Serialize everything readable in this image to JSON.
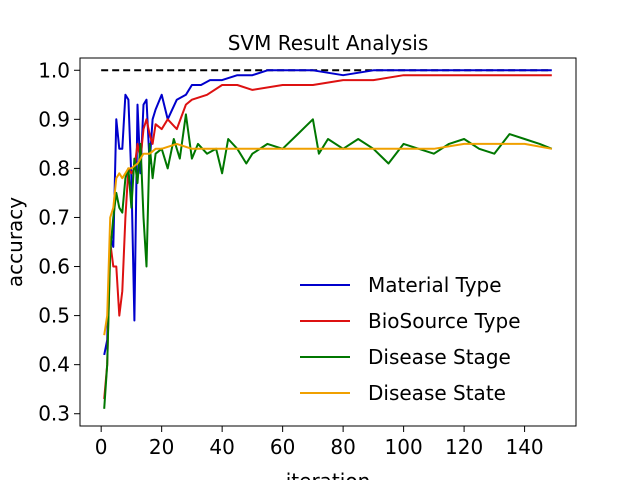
{
  "chart_data": {
    "type": "line",
    "title": "SVM Result Analysis",
    "xlabel": "iteration",
    "ylabel": "accuracy",
    "xlim": [
      -7,
      157
    ],
    "ylim": [
      0.275,
      1.025
    ],
    "xticks": [
      0,
      20,
      40,
      60,
      80,
      100,
      120,
      140
    ],
    "yticks": [
      0.3,
      0.4,
      0.5,
      0.6,
      0.7,
      0.8,
      0.9,
      1.0
    ],
    "xtick_labels": [
      "0",
      "20",
      "40",
      "60",
      "80",
      "100",
      "120",
      "140"
    ],
    "ytick_labels": [
      "0.3",
      "0.4",
      "0.5",
      "0.6",
      "0.7",
      "0.8",
      "0.9",
      "1.0"
    ],
    "grid": false,
    "legend_position": "lower-right",
    "reference_line": {
      "y": 1.0,
      "x_range": [
        0,
        149
      ],
      "style": "dashed",
      "color": "#000000"
    },
    "series": [
      {
        "name": "Material Type",
        "color": "#0000cc",
        "x": [
          1,
          2,
          3,
          4,
          5,
          6,
          7,
          8,
          9,
          10,
          11,
          12,
          13,
          14,
          15,
          16,
          17,
          18,
          20,
          22,
          25,
          28,
          30,
          33,
          36,
          40,
          45,
          50,
          55,
          60,
          70,
          80,
          90,
          100,
          110,
          120,
          130,
          140,
          149
        ],
        "values": [
          0.42,
          0.45,
          0.66,
          0.64,
          0.9,
          0.84,
          0.84,
          0.95,
          0.94,
          0.78,
          0.49,
          0.93,
          0.79,
          0.93,
          0.94,
          0.81,
          0.9,
          0.92,
          0.95,
          0.9,
          0.94,
          0.95,
          0.97,
          0.97,
          0.98,
          0.98,
          0.99,
          0.99,
          1.0,
          1.0,
          1.0,
          0.99,
          1.0,
          1.0,
          1.0,
          1.0,
          1.0,
          1.0,
          1.0
        ]
      },
      {
        "name": "BioSource Type",
        "color": "#dd1111",
        "x": [
          1,
          2,
          3,
          4,
          5,
          6,
          7,
          8,
          9,
          10,
          11,
          12,
          13,
          14,
          15,
          16,
          17,
          18,
          20,
          22,
          25,
          28,
          30,
          35,
          40,
          45,
          50,
          60,
          70,
          80,
          90,
          100,
          110,
          120,
          130,
          140,
          149
        ],
        "values": [
          0.33,
          0.4,
          0.65,
          0.6,
          0.6,
          0.5,
          0.55,
          0.7,
          0.8,
          0.79,
          0.8,
          0.85,
          0.82,
          0.88,
          0.9,
          0.87,
          0.85,
          0.89,
          0.88,
          0.9,
          0.88,
          0.93,
          0.94,
          0.95,
          0.97,
          0.97,
          0.96,
          0.97,
          0.97,
          0.98,
          0.98,
          0.99,
          0.99,
          0.99,
          0.99,
          0.99,
          0.99
        ]
      },
      {
        "name": "Disease Stage",
        "color": "#007700",
        "x": [
          1,
          2,
          3,
          4,
          5,
          6,
          7,
          8,
          9,
          10,
          11,
          12,
          13,
          14,
          15,
          16,
          17,
          18,
          20,
          22,
          24,
          26,
          28,
          30,
          32,
          35,
          38,
          40,
          42,
          45,
          48,
          50,
          55,
          60,
          65,
          70,
          72,
          75,
          80,
          85,
          90,
          95,
          100,
          105,
          110,
          115,
          120,
          125,
          130,
          135,
          140,
          145,
          149
        ],
        "values": [
          0.31,
          0.4,
          0.63,
          0.7,
          0.75,
          0.72,
          0.71,
          0.78,
          0.8,
          0.72,
          0.82,
          0.77,
          0.85,
          0.7,
          0.6,
          0.85,
          0.78,
          0.83,
          0.84,
          0.8,
          0.86,
          0.82,
          0.91,
          0.82,
          0.85,
          0.83,
          0.84,
          0.79,
          0.86,
          0.84,
          0.81,
          0.83,
          0.85,
          0.84,
          0.87,
          0.9,
          0.83,
          0.86,
          0.84,
          0.86,
          0.84,
          0.81,
          0.85,
          0.84,
          0.83,
          0.85,
          0.86,
          0.84,
          0.83,
          0.87,
          0.86,
          0.85,
          0.84
        ]
      },
      {
        "name": "Disease State",
        "color": "#f0a000",
        "x": [
          1,
          2,
          3,
          4,
          5,
          6,
          7,
          8,
          9,
          10,
          12,
          14,
          16,
          18,
          20,
          25,
          30,
          35,
          40,
          50,
          60,
          70,
          80,
          90,
          100,
          110,
          120,
          130,
          140,
          149
        ],
        "values": [
          0.46,
          0.5,
          0.7,
          0.72,
          0.78,
          0.79,
          0.78,
          0.79,
          0.8,
          0.8,
          0.81,
          0.83,
          0.83,
          0.84,
          0.84,
          0.85,
          0.84,
          0.84,
          0.84,
          0.84,
          0.84,
          0.84,
          0.84,
          0.84,
          0.84,
          0.84,
          0.85,
          0.85,
          0.85,
          0.84
        ]
      }
    ]
  }
}
